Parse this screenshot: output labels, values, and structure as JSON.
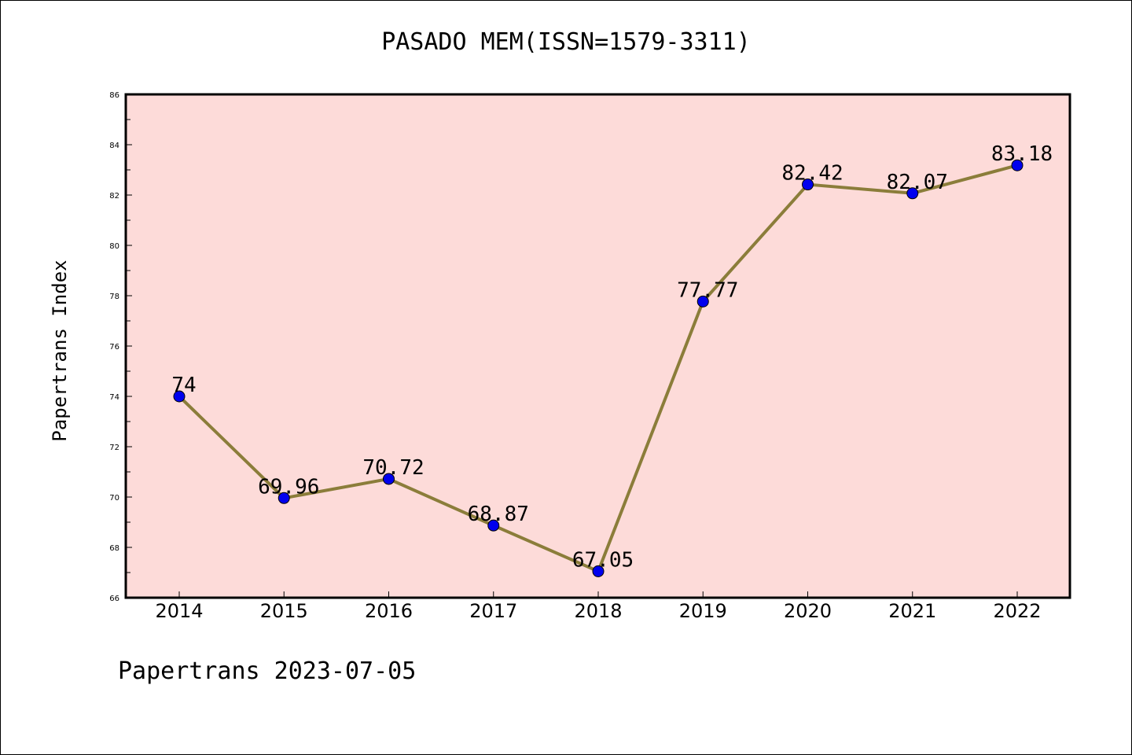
{
  "chart_data": {
    "type": "line",
    "title": "PASADO MEM(ISSN=1579-3311)",
    "xlabel": "",
    "ylabel": "Papertrans Index",
    "categories": [
      "2014",
      "2015",
      "2016",
      "2017",
      "2018",
      "2019",
      "2020",
      "2021",
      "2022"
    ],
    "series": [
      {
        "values": [
          74,
          69.96,
          70.72,
          68.87,
          67.05,
          77.77,
          82.42,
          82.07,
          83.18
        ],
        "labels": [
          "74",
          "69.96",
          "70.72",
          "68.87",
          "67.05",
          "77.77",
          "82.42",
          "82.07",
          "83.18"
        ]
      }
    ],
    "ylim": [
      66,
      86
    ],
    "yticks": [
      "66",
      "68",
      "70",
      "72",
      "74",
      "76",
      "78",
      "80",
      "82",
      "84",
      "86"
    ],
    "grid": false,
    "legend": "none",
    "colors": {
      "plot_background": "#fddbd9",
      "line": "#8b7d3a",
      "marker": "#0000ee",
      "axes": "#000000"
    }
  },
  "footer": "Papertrans 2023-07-05"
}
